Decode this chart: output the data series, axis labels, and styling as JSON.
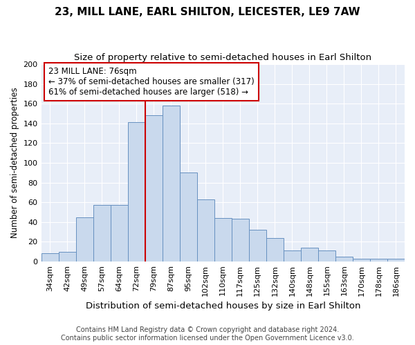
{
  "title": "23, MILL LANE, EARL SHILTON, LEICESTER, LE9 7AW",
  "subtitle": "Size of property relative to semi-detached houses in Earl Shilton",
  "xlabel": "Distribution of semi-detached houses by size in Earl Shilton",
  "ylabel": "Number of semi-detached properties",
  "footer_line1": "Contains HM Land Registry data © Crown copyright and database right 2024.",
  "footer_line2": "Contains public sector information licensed under the Open Government Licence v3.0.",
  "annotation_line1": "23 MILL LANE: 76sqm",
  "annotation_line2": "← 37% of semi-detached houses are smaller (317)",
  "annotation_line3": "61% of semi-detached houses are larger (518) →",
  "bar_labels": [
    "34sqm",
    "42sqm",
    "49sqm",
    "57sqm",
    "64sqm",
    "72sqm",
    "79sqm",
    "87sqm",
    "95sqm",
    "102sqm",
    "110sqm",
    "117sqm",
    "125sqm",
    "132sqm",
    "140sqm",
    "148sqm",
    "155sqm",
    "163sqm",
    "170sqm",
    "178sqm",
    "186sqm"
  ],
  "bar_values": [
    8,
    10,
    45,
    57,
    57,
    141,
    148,
    158,
    90,
    63,
    44,
    43,
    32,
    24,
    11,
    14,
    11,
    5,
    3,
    3,
    3
  ],
  "bar_color": "#c9d9ed",
  "bar_edge_color": "#6690c0",
  "vline_color": "#cc0000",
  "background_color": "#e8eef8",
  "ylim": [
    0,
    200
  ],
  "yticks": [
    0,
    20,
    40,
    60,
    80,
    100,
    120,
    140,
    160,
    180,
    200
  ],
  "title_fontsize": 11,
  "subtitle_fontsize": 9.5,
  "xlabel_fontsize": 9.5,
  "ylabel_fontsize": 8.5,
  "tick_fontsize": 8,
  "footer_fontsize": 7,
  "annotation_fontsize": 8.5,
  "grid_color": "#ffffff"
}
